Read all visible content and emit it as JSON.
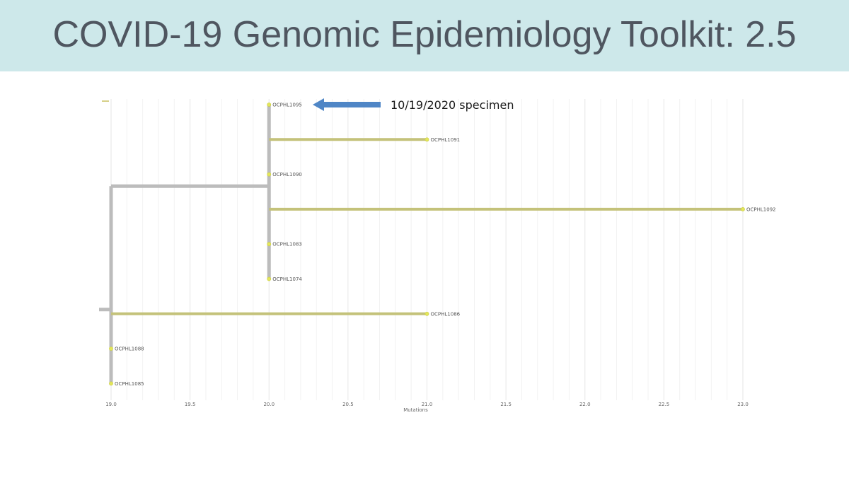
{
  "slide": {
    "title": "COVID-19 Genomic Epidemiology Toolkit: 2.5"
  },
  "chart_data": {
    "type": "phylogenetic-tree",
    "xlabel": "Mutations",
    "xlim": [
      19.0,
      23.0
    ],
    "x_ticks": [
      "19.0",
      "19.5",
      "20.0",
      "20.5",
      "21.0",
      "21.5",
      "22.0",
      "22.5",
      "23.0"
    ],
    "grid": true,
    "tips": [
      {
        "name": "OCPHL1095",
        "x": 20.0
      },
      {
        "name": "OCPHL1091",
        "x": 21.0
      },
      {
        "name": "OCPHL1090",
        "x": 20.0
      },
      {
        "name": "OCPHL1092",
        "x": 23.0
      },
      {
        "name": "OCPHL1083",
        "x": 20.0
      },
      {
        "name": "OCPHL1074",
        "x": 20.0
      },
      {
        "name": "OCPHL1086",
        "x": 21.0
      },
      {
        "name": "OCPHL1088",
        "x": 19.0
      },
      {
        "name": "OCPHL1085",
        "x": 19.0
      }
    ],
    "internal_nodes": [
      {
        "x": 19.0,
        "children_tips": [
          "OCPHL1086",
          "OCPHL1088",
          "OCPHL1085"
        ],
        "child_clade": "clade-20"
      },
      {
        "id": "clade-20",
        "x": 20.0,
        "children_tips": [
          "OCPHL1095",
          "OCPHL1091",
          "OCPHL1090",
          "OCPHL1092",
          "OCPHL1083",
          "OCPHL1074"
        ]
      }
    ],
    "colors": {
      "internal_branch": "#bcbcbc",
      "tip_branch": "#c4c27a",
      "tip_dot": "#e3e65a",
      "grid": "#e6e6e6",
      "arrow": "#4f86c6"
    },
    "annotation": {
      "text": "10/19/2020 specimen",
      "target_tip": "OCPHL1095"
    }
  }
}
